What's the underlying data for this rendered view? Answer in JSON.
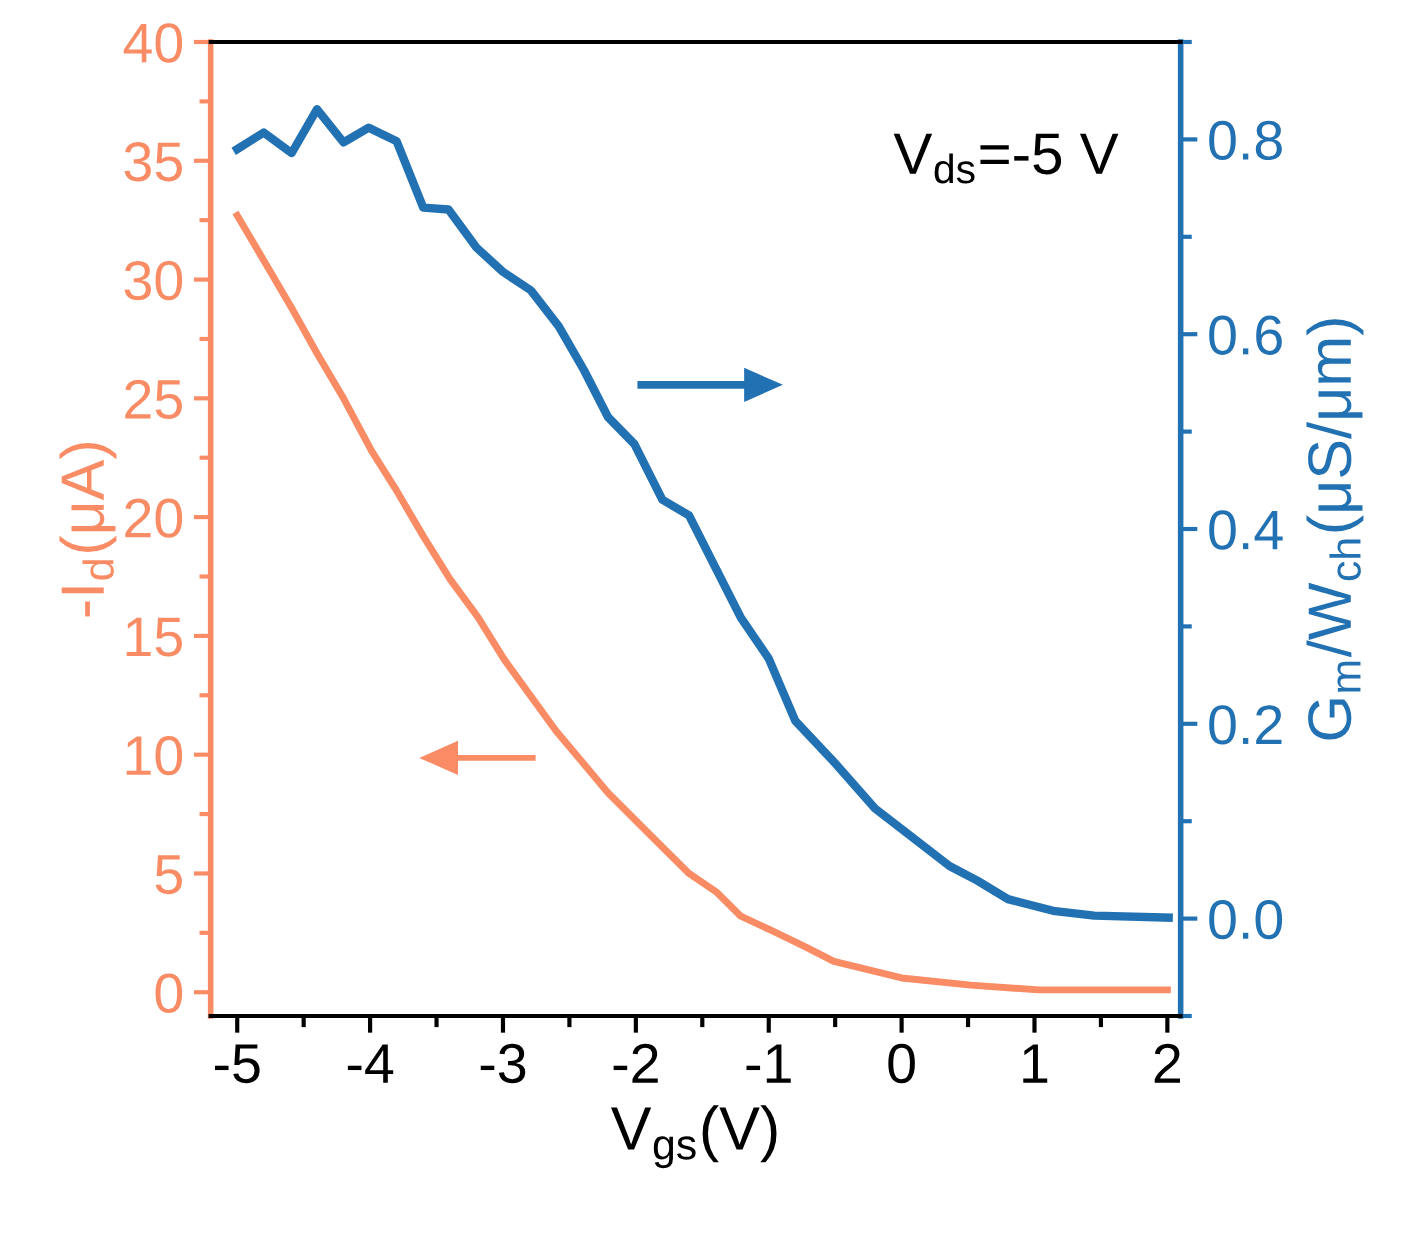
{
  "chart_data": {
    "type": "line",
    "xlabel": "V$_{gs}$(V)",
    "ylabel": "-I$_{d}$(μA)",
    "y2label": "G$_{m}$/W$_{ch}$(μS/μm)",
    "annotations": [
      "V$_{ds}$=-5 V"
    ],
    "xlim": [
      -5.2,
      2.1
    ],
    "xticks": [
      {
        "value": -5,
        "label": "-5"
      },
      {
        "value": -4,
        "label": "-4"
      },
      {
        "value": -3,
        "label": "-3"
      },
      {
        "value": -2,
        "label": "-2"
      },
      {
        "value": -1,
        "label": "-1"
      },
      0,
      1,
      2
    ],
    "ylim": [
      -1,
      40
    ],
    "yticks": [
      0,
      5,
      10,
      15,
      20,
      25,
      30,
      35,
      40
    ],
    "y2lim": [
      -0.1,
      0.9
    ],
    "y2ticks": [
      {
        "value": 0,
        "label": "0.0"
      },
      0.2,
      0.4,
      0.6,
      0.8
    ],
    "grid": false,
    "line_style": "solid",
    "marker": "none",
    "series": [
      {
        "color": "#f98c64",
        "x": [
          -5.0,
          -4.81,
          -4.59,
          -4.4,
          -4.2,
          -3.99,
          -3.81,
          -3.6,
          -3.4,
          -3.19,
          -2.99,
          -2.6,
          -2.21,
          -1.96,
          -1.6,
          -1.39,
          -1.21,
          -0.98,
          -0.72,
          -0.51,
          0.0,
          0.52,
          1.03,
          2.0
        ],
        "values": [
          32.7,
          30.9,
          28.8,
          26.9,
          25.0,
          22.8,
          21.2,
          19.2,
          17.4,
          15.8,
          14.0,
          11.0,
          8.4,
          7.0,
          5.0,
          4.2,
          3.2,
          2.6,
          1.9,
          1.3,
          0.6,
          0.3,
          0.1,
          0.1
        ]
      },
      {
        "color": "#2271b3",
        "axis": "y2",
        "x": [
          -5.0,
          -4.8,
          -4.59,
          -4.4,
          -4.2,
          -4.01,
          -3.8,
          -3.6,
          -3.41,
          -3.2,
          -3.0,
          -2.79,
          -2.58,
          -2.39,
          -2.21,
          -2.01,
          -1.8,
          -1.6,
          -1.4,
          -1.21,
          -1.0,
          -0.8,
          -0.51,
          -0.2,
          0.0,
          0.36,
          0.57,
          0.8,
          1.14,
          1.45,
          2.01
        ],
        "values": [
          0.79,
          0.807,
          0.786,
          0.831,
          0.797,
          0.812,
          0.798,
          0.73,
          0.728,
          0.689,
          0.664,
          0.645,
          0.608,
          0.563,
          0.515,
          0.487,
          0.43,
          0.414,
          0.36,
          0.309,
          0.267,
          0.203,
          0.161,
          0.113,
          0.092,
          0.054,
          0.039,
          0.02,
          0.008,
          0.003,
          0.001
        ]
      }
    ]
  }
}
